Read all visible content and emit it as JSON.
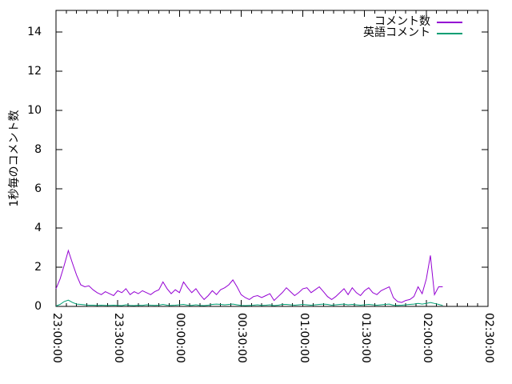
{
  "chart_data": {
    "type": "line",
    "title": "",
    "xlabel": "",
    "ylabel": "1秒毎のコメント数",
    "grid": false,
    "legend_position": "top-right-inside",
    "background_color": "#ffffff",
    "axis_color": "#000000",
    "x_start_time": "23:00:00",
    "x_step_minutes": 2,
    "x_range_minutes": [
      0,
      210
    ],
    "x_tick_labels": [
      "23:00:00",
      "23:30:00",
      "00:00:00",
      "00:30:00",
      "01:00:00",
      "01:30:00",
      "02:00:00",
      "02:30:00"
    ],
    "x_tick_minutes": [
      0,
      30,
      60,
      90,
      120,
      150,
      180,
      210
    ],
    "x_minor_tick_every_minutes": 5,
    "y_tick_values": [
      0,
      2,
      4,
      6,
      8,
      10,
      12,
      14
    ],
    "ylim": [
      0,
      15.1
    ],
    "series": [
      {
        "name": "コメント数",
        "color": "#9400d3",
        "values": [
          0.9,
          1.4,
          2.1,
          2.85,
          2.2,
          1.6,
          1.1,
          1.0,
          1.05,
          0.85,
          0.7,
          0.6,
          0.75,
          0.65,
          0.55,
          0.8,
          0.7,
          0.9,
          0.6,
          0.75,
          0.65,
          0.8,
          0.7,
          0.6,
          0.75,
          0.85,
          1.25,
          0.9,
          0.65,
          0.85,
          0.7,
          1.25,
          0.95,
          0.7,
          0.9,
          0.6,
          0.35,
          0.55,
          0.8,
          0.6,
          0.85,
          0.95,
          1.1,
          1.35,
          1.0,
          0.6,
          0.45,
          0.35,
          0.5,
          0.55,
          0.45,
          0.55,
          0.65,
          0.3,
          0.5,
          0.7,
          0.95,
          0.75,
          0.55,
          0.7,
          0.9,
          0.95,
          0.7,
          0.85,
          1.0,
          0.75,
          0.5,
          0.35,
          0.5,
          0.7,
          0.9,
          0.6,
          0.95,
          0.7,
          0.55,
          0.8,
          0.95,
          0.7,
          0.6,
          0.8,
          0.9,
          1.0,
          0.45,
          0.25,
          0.2,
          0.3,
          0.35,
          0.5,
          1.0,
          0.65,
          1.4,
          2.6,
          0.6,
          1.0,
          1.0
        ]
      },
      {
        "name": "英語コメント",
        "color": "#009e73",
        "values": [
          0.02,
          0.1,
          0.25,
          0.32,
          0.2,
          0.12,
          0.1,
          0.08,
          0.06,
          0.06,
          0.05,
          0.06,
          0.05,
          0.05,
          0.06,
          0.05,
          0.04,
          0.08,
          0.05,
          0.04,
          0.06,
          0.05,
          0.08,
          0.06,
          0.05,
          0.06,
          0.1,
          0.06,
          0.05,
          0.06,
          0.08,
          0.1,
          0.06,
          0.05,
          0.08,
          0.05,
          0.04,
          0.06,
          0.1,
          0.12,
          0.1,
          0.08,
          0.1,
          0.12,
          0.08,
          0.05,
          0.04,
          0.05,
          0.06,
          0.08,
          0.05,
          0.06,
          0.08,
          0.04,
          0.06,
          0.1,
          0.1,
          0.08,
          0.06,
          0.08,
          0.1,
          0.08,
          0.06,
          0.08,
          0.1,
          0.12,
          0.1,
          0.06,
          0.08,
          0.1,
          0.12,
          0.08,
          0.1,
          0.08,
          0.06,
          0.08,
          0.1,
          0.08,
          0.06,
          0.08,
          0.1,
          0.12,
          0.06,
          0.05,
          0.06,
          0.08,
          0.1,
          0.12,
          0.15,
          0.12,
          0.15,
          0.2,
          0.15,
          0.1,
          0.05
        ]
      }
    ]
  }
}
